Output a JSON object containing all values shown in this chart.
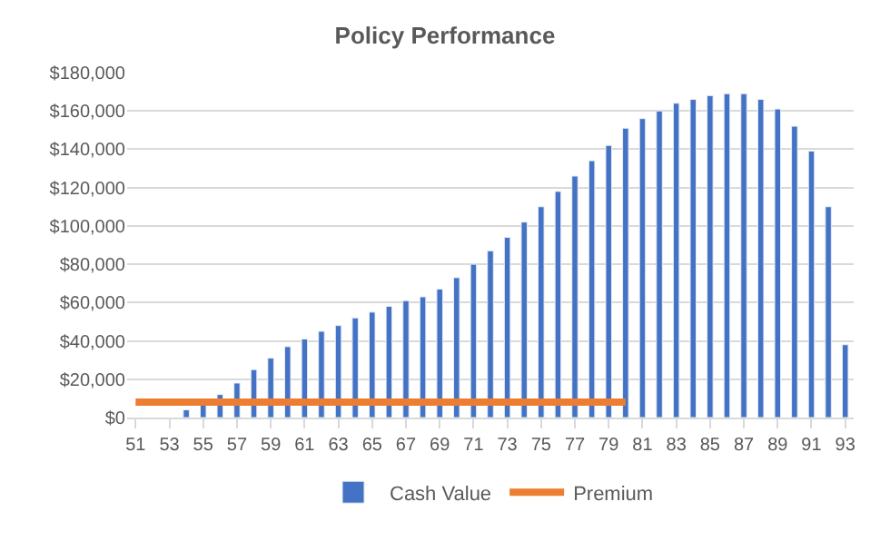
{
  "chart_data": {
    "type": "bar",
    "title": "Policy Performance",
    "categories": [
      "51",
      null,
      "53",
      null,
      "55",
      null,
      "57",
      null,
      "59",
      null,
      "61",
      null,
      "63",
      null,
      "65",
      null,
      "67",
      null,
      "69",
      null,
      "71",
      null,
      "73",
      null,
      "75",
      null,
      "77",
      null,
      "79",
      null,
      "81",
      null,
      "83",
      null,
      "85",
      null,
      "87",
      null,
      "89",
      null,
      "91",
      null,
      "93"
    ],
    "series": [
      {
        "name": "Cash Value",
        "color": "#4472c4",
        "values": [
          null,
          null,
          null,
          4000,
          8000,
          12000,
          18000,
          25000,
          31000,
          37000,
          41000,
          45000,
          48000,
          52000,
          55000,
          58000,
          61000,
          63000,
          67000,
          73000,
          80000,
          87000,
          94000,
          102000,
          110000,
          118000,
          126000,
          134000,
          142000,
          151000,
          156000,
          160000,
          164000,
          166000,
          168000,
          169000,
          169000,
          166000,
          161000,
          152000,
          139000,
          110000,
          38000
        ]
      },
      {
        "name": "Premium",
        "color": "#ed7d31",
        "type": "line",
        "values": [
          8000,
          8000,
          8000,
          8000,
          8000,
          8000,
          8000,
          8000,
          8000,
          8000,
          8000,
          8000,
          8000,
          8000,
          8000,
          8000,
          8000,
          8000,
          8000,
          8000,
          8000,
          8000,
          8000,
          8000,
          8000,
          8000,
          8000,
          8000,
          8000,
          8000,
          null,
          null,
          null,
          null,
          null,
          null,
          null,
          null,
          null,
          null,
          null,
          null,
          null
        ]
      }
    ],
    "ylim": [
      0,
      180000
    ],
    "yticks": [
      {
        "value": 0,
        "label": "$0"
      },
      {
        "value": 20000,
        "label": "$20,000"
      },
      {
        "value": 40000,
        "label": "$40,000"
      },
      {
        "value": 60000,
        "label": "$60,000"
      },
      {
        "value": 80000,
        "label": "$80,000"
      },
      {
        "value": 100000,
        "label": "$100,000"
      },
      {
        "value": 120000,
        "label": "$120,000"
      },
      {
        "value": 140000,
        "label": "$140,000"
      },
      {
        "value": 160000,
        "label": "$160,000"
      },
      {
        "value": 180000,
        "label": "$180,000"
      }
    ],
    "grid": "y",
    "legend": "bottom"
  }
}
